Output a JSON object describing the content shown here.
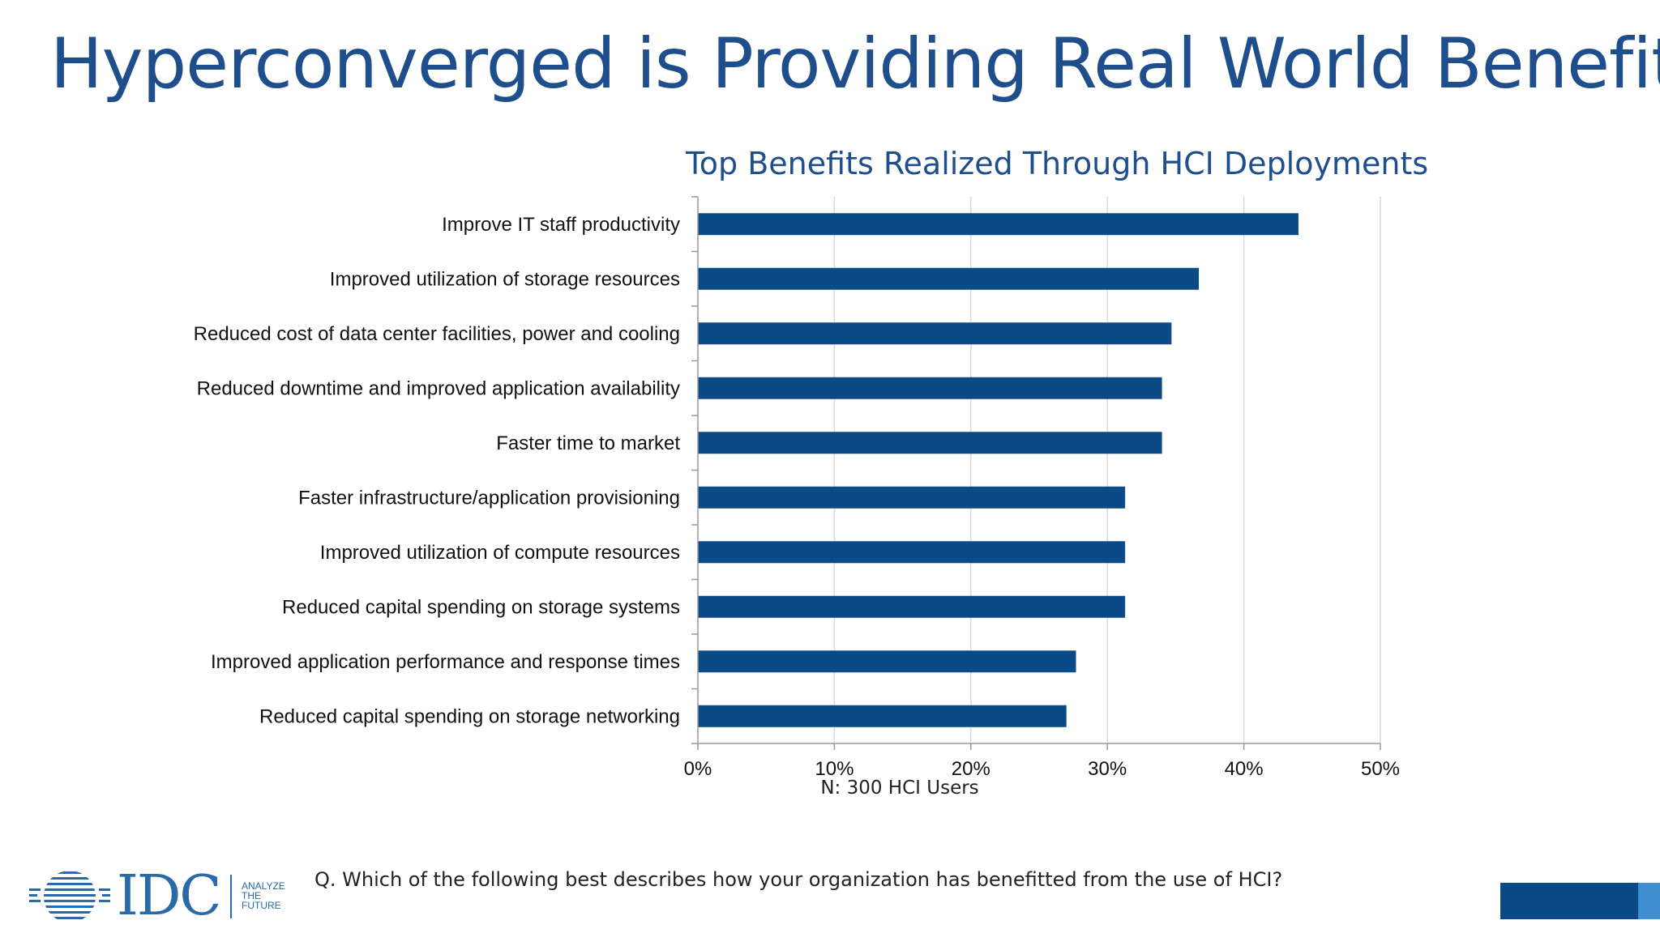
{
  "slide": {
    "title": "Hyperconverged is Providing Real World Benefits",
    "question": "Q. Which of the following best describes how your organization has benefitted from the use of HCI?",
    "logo": {
      "wordmark": "IDC",
      "tagline": [
        "ANALYZE",
        "THE",
        "FUTURE"
      ]
    },
    "colors": {
      "title": "#1f4e8c",
      "bar": "#0b4a86",
      "logo": "#2a6aa8"
    }
  },
  "chart_data": {
    "type": "bar",
    "orientation": "horizontal",
    "title": "Top Benefits Realized Through HCI Deployments",
    "note": "N: 300 HCI Users",
    "categories": [
      "Improve IT staff productivity",
      "Improved utilization of storage resources",
      "Reduced cost of data center facilities, power and cooling",
      "Reduced downtime and improved application availability",
      "Faster time to market",
      "Faster infrastructure/application provisioning",
      "Improved utilization of compute resources",
      "Reduced capital spending on storage systems",
      "Improved application performance and response times",
      "Reduced capital spending on storage networking"
    ],
    "values": [
      44.0,
      36.7,
      34.7,
      34.0,
      34.0,
      31.3,
      31.3,
      31.3,
      27.7,
      27.0
    ],
    "xlim": [
      0,
      50
    ],
    "xticks": [
      "0%",
      "10%",
      "20%",
      "30%",
      "40%",
      "50%"
    ],
    "grid": true,
    "bar_color": "#0b4a86"
  }
}
